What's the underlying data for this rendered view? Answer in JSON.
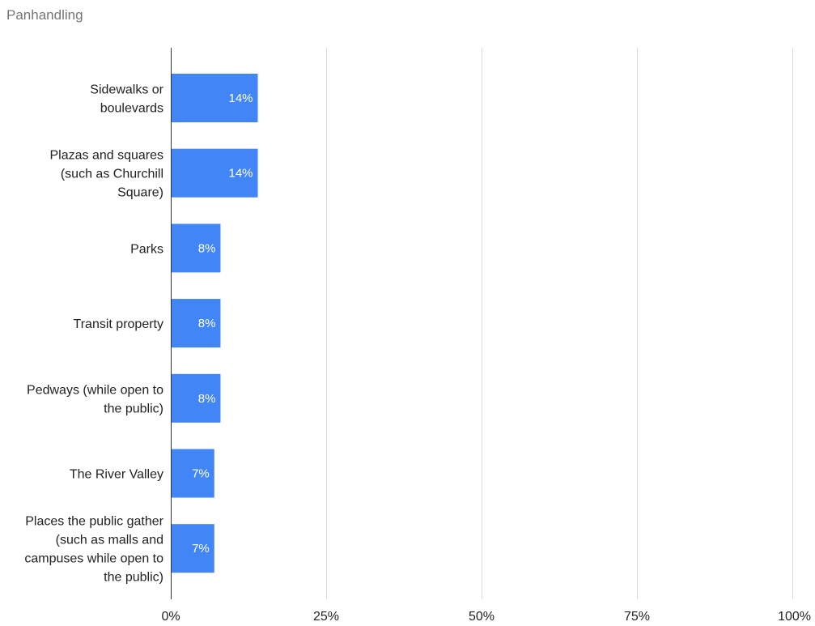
{
  "chart_data": {
    "type": "bar",
    "orientation": "horizontal",
    "title": "Panhandling",
    "categories": [
      [
        "Sidewalks or",
        "boulevards"
      ],
      [
        "Plazas and squares",
        "(such as Churchill",
        "Square)"
      ],
      [
        "Parks"
      ],
      [
        "Transit property"
      ],
      [
        "Pedways (while open to",
        "the public)"
      ],
      [
        "The River Valley"
      ],
      [
        "Places the public gather",
        "(such as malls and",
        "campuses while open to",
        "the public)"
      ]
    ],
    "values": [
      14,
      14,
      8,
      8,
      8,
      7,
      7
    ],
    "data_labels": [
      "14%",
      "14%",
      "8%",
      "8%",
      "8%",
      "7%",
      "7%"
    ],
    "xlim": [
      0,
      100
    ],
    "x_ticks": [
      0,
      25,
      50,
      75,
      100
    ],
    "x_tick_labels": [
      "0%",
      "25%",
      "50%",
      "75%",
      "100%"
    ],
    "grid": true,
    "legend": "none",
    "bar_color": "#4285F4"
  }
}
